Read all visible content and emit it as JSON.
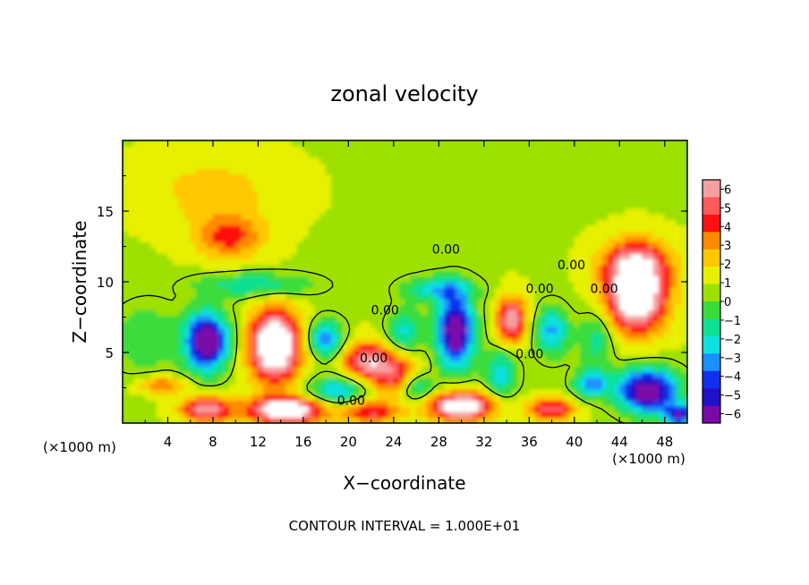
{
  "chart_data": {
    "type": "heatmap",
    "title": "zonal velocity",
    "xlabel": "X−coordinate",
    "ylabel": "Z−coordinate",
    "x_unit_left": "(×1000 m)",
    "x_unit_right": "(×1000 m)",
    "footer": "CONTOUR INTERVAL = 1.000E+01",
    "xlim": [
      0,
      50
    ],
    "ylim": [
      0,
      20
    ],
    "x_ticks": [
      4,
      8,
      12,
      16,
      20,
      24,
      28,
      32,
      36,
      40,
      44,
      48
    ],
    "y_ticks": [
      5,
      10,
      15
    ],
    "colorbar": {
      "range": [
        -6,
        6
      ],
      "ticks": [
        "6",
        "5",
        "4",
        "3",
        "2",
        "1",
        "0",
        "−1",
        "−2",
        "−3",
        "−4",
        "−5",
        "−6"
      ],
      "colors": [
        "#f4a0a0",
        "#ff5a5a",
        "#ff1010",
        "#ff8a00",
        "#ffc800",
        "#e6f000",
        "#9ee000",
        "#3adc3a",
        "#10e090",
        "#10e0e0",
        "#1a90ff",
        "#1030f0",
        "#2010c8",
        "#7a0aa8"
      ]
    },
    "contour_labels": [
      "0.00",
      "0.00",
      "0.00",
      "0.00",
      "0.00",
      "0.00",
      "0.00",
      "0.00"
    ],
    "blobs": [
      {
        "x": 9.5,
        "z": 13.2,
        "v": 3.2,
        "sx": 3.0,
        "sz": 1.6
      },
      {
        "x": 8.0,
        "z": 16.5,
        "v": 1.4,
        "sx": 6.0,
        "sz": 2.5
      },
      {
        "x": 7.5,
        "z": 5.8,
        "v": -8.0,
        "sx": 1.9,
        "sz": 2.0
      },
      {
        "x": 13.5,
        "z": 5.5,
        "v": 8.5,
        "sx": 2.2,
        "sz": 2.5
      },
      {
        "x": 11.8,
        "z": 9.8,
        "v": -2.6,
        "sx": 5.0,
        "sz": 0.9
      },
      {
        "x": 18.0,
        "z": 6.0,
        "v": -4.2,
        "sx": 1.6,
        "sz": 1.3
      },
      {
        "x": 21.5,
        "z": 4.5,
        "v": 5.0,
        "sx": 2.0,
        "sz": 1.3
      },
      {
        "x": 24.0,
        "z": 3.5,
        "v": 4.2,
        "sx": 2.0,
        "sz": 1.5
      },
      {
        "x": 25.0,
        "z": 6.5,
        "v": -3.0,
        "sx": 1.5,
        "sz": 1.5
      },
      {
        "x": 29.5,
        "z": 6.5,
        "v": -8.0,
        "sx": 1.6,
        "sz": 2.5
      },
      {
        "x": 28.0,
        "z": 9.5,
        "v": -3.2,
        "sx": 3.0,
        "sz": 0.9
      },
      {
        "x": 34.5,
        "z": 7.3,
        "v": 5.5,
        "sx": 1.3,
        "sz": 1.6
      },
      {
        "x": 33.5,
        "z": 3.5,
        "v": -3.2,
        "sx": 1.4,
        "sz": 1.7
      },
      {
        "x": 38.0,
        "z": 6.5,
        "v": -3.8,
        "sx": 1.5,
        "sz": 1.7
      },
      {
        "x": 42.0,
        "z": 6.0,
        "v": -2.4,
        "sx": 1.5,
        "sz": 2.0
      },
      {
        "x": 45.5,
        "z": 9.2,
        "v": 8.5,
        "sx": 2.6,
        "sz": 2.6
      },
      {
        "x": 45.5,
        "z": 11.5,
        "v": 3.0,
        "sx": 3.0,
        "sz": 1.5
      },
      {
        "x": 46.5,
        "z": 2.3,
        "v": -8.0,
        "sx": 2.6,
        "sz": 1.5
      },
      {
        "x": 30.0,
        "z": 1.2,
        "v": 7.5,
        "sx": 2.8,
        "sz": 1.0
      },
      {
        "x": 14.5,
        "z": 0.9,
        "v": 8.0,
        "sx": 3.2,
        "sz": 0.9
      },
      {
        "x": 7.5,
        "z": 1.0,
        "v": 5.5,
        "sx": 2.2,
        "sz": 0.9
      },
      {
        "x": 22.0,
        "z": 0.8,
        "v": 4.0,
        "sx": 2.5,
        "sz": 0.8
      },
      {
        "x": 38.0,
        "z": 1.0,
        "v": 4.5,
        "sx": 2.0,
        "sz": 0.8
      },
      {
        "x": 3.5,
        "z": 2.7,
        "v": 3.0,
        "sx": 2.0,
        "sz": 0.6
      },
      {
        "x": 2.0,
        "z": 6.0,
        "v": -1.6,
        "sx": 3.0,
        "sz": 2.5
      },
      {
        "x": 19.0,
        "z": 2.3,
        "v": -3.5,
        "sx": 2.5,
        "sz": 1.0
      },
      {
        "x": 26.0,
        "z": 2.5,
        "v": -3.0,
        "sx": 1.5,
        "sz": 1.0
      },
      {
        "x": 41.5,
        "z": 2.8,
        "v": -4.0,
        "sx": 1.5,
        "sz": 1.0
      },
      {
        "x": 49.5,
        "z": 0.6,
        "v": -6.0,
        "sx": 1.5,
        "sz": 0.7
      }
    ]
  }
}
